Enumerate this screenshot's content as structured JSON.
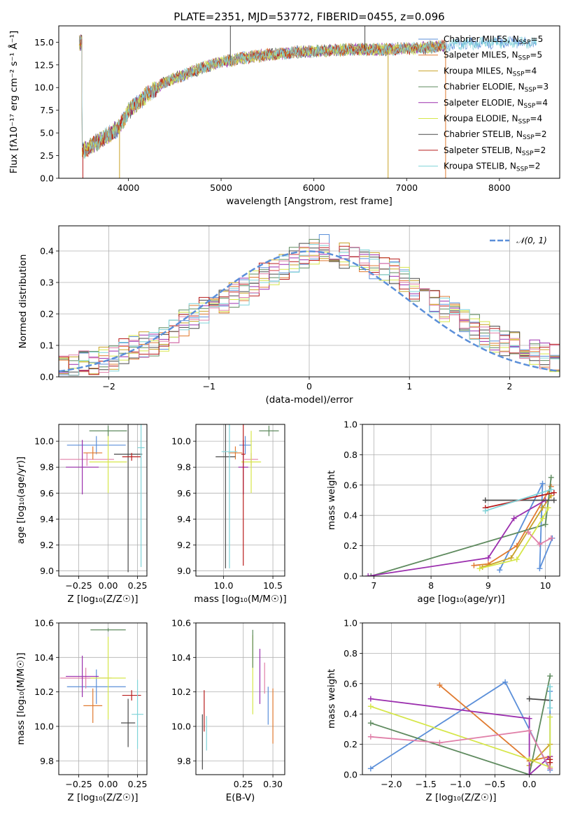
{
  "figure": {
    "colors": {
      "chabrier_miles": "#5b8fd9",
      "salpeter_miles": "#e07a30",
      "kroupa_miles": "#c9a227",
      "chabrier_elodie": "#5e8a5e",
      "salpeter_elodie": "#9b2fae",
      "kroupa_elodie": "#d6e64a",
      "chabrier_stelib": "#4a4a4a",
      "salpeter_stelib": "#b81c1c",
      "kroupa_stelib": "#7fd3d8",
      "pink": "#e07fa8",
      "normal_curve": "#5b8fd9"
    }
  },
  "chart_data": [
    {
      "id": "spectrum",
      "type": "line",
      "title": "PLATE=2351, MJD=53772, FIBERID=0455, z=0.096",
      "xlabel": "wavelength [Angstrom, rest frame]",
      "ylabel": "Flux [fλ10⁻¹⁷ erg cm⁻² s⁻¹ Å⁻¹]",
      "xlim": [
        3250,
        8650
      ],
      "ylim": [
        0,
        16.8
      ],
      "xticks": [
        "4000",
        "5000",
        "6000",
        "7000",
        "8000"
      ],
      "xtick_values": [
        4000,
        5000,
        6000,
        7000,
        8000
      ],
      "yticks": [
        "0.0",
        "2.5",
        "5.0",
        "7.5",
        "10.0",
        "12.5",
        "15.0"
      ],
      "ytick_values": [
        0,
        2.5,
        5,
        7.5,
        10,
        12.5,
        15
      ],
      "continuum": {
        "x": [
          3500,
          3700,
          3900,
          4000,
          4200,
          4400,
          4600,
          4800,
          5000,
          5200,
          5400,
          5600,
          5800,
          6000,
          6200,
          6400,
          6600,
          6800,
          7000,
          7200,
          7400,
          7600,
          7800,
          8000,
          8200,
          8400
        ],
        "y": [
          3.0,
          4.2,
          5.6,
          7.4,
          9.2,
          10.6,
          11.4,
          12.2,
          12.8,
          13.2,
          13.5,
          13.7,
          13.9,
          14.0,
          14.1,
          14.2,
          14.2,
          14.2,
          14.3,
          14.4,
          14.6,
          14.8,
          14.9,
          15.0,
          15.0,
          15.0
        ]
      },
      "spikes": [
        {
          "x": 3510,
          "y": 0,
          "series": "Salpeter STELIB"
        },
        {
          "x": 3905,
          "y": 0,
          "series": "Kroupa MILES"
        },
        {
          "x": 5100,
          "y": 16.8,
          "series": "Chabrier STELIB"
        },
        {
          "x": 6550,
          "y": 16.8,
          "series": "Chabrier STELIB"
        },
        {
          "x": 6800,
          "y": 0,
          "series": "Kroupa MILES"
        },
        {
          "x": 7420,
          "y": 0,
          "series": "Salpeter MILES"
        }
      ],
      "legend": {
        "placement": "upper right",
        "entries": [
          {
            "name": "Chabrier MILES, N",
            "sub": "SSP",
            "value": "=5",
            "color": "#5b8fd9"
          },
          {
            "name": "Salpeter MILES, N",
            "sub": "SSP",
            "value": "=5",
            "color": "#e07a30"
          },
          {
            "name": "Kroupa MILES, N",
            "sub": "SSP",
            "value": "=4",
            "color": "#c9a227"
          },
          {
            "name": "Chabrier ELODIE, N",
            "sub": "SSP",
            "value": "=3",
            "color": "#5e8a5e"
          },
          {
            "name": "Salpeter ELODIE, N",
            "sub": "SSP",
            "value": "=4",
            "color": "#9b2fae"
          },
          {
            "name": "Kroupa ELODIE, N",
            "sub": "SSP",
            "value": "=4",
            "color": "#d6e64a"
          },
          {
            "name": "Chabrier STELIB, N",
            "sub": "SSP",
            "value": "=2",
            "color": "#4a4a4a"
          },
          {
            "name": "Salpeter STELIB, N",
            "sub": "SSP",
            "value": "=2",
            "color": "#b81c1c"
          },
          {
            "name": "Kroupa STELIB, N",
            "sub": "SSP",
            "value": "=2",
            "color": "#7fd3d8"
          }
        ]
      }
    },
    {
      "id": "residuals",
      "type": "line",
      "xlabel": "(data-model)/error",
      "ylabel": "Normed distribution",
      "xlim": [
        -2.5,
        2.5
      ],
      "ylim": [
        0,
        0.48
      ],
      "grid": true,
      "xticks": [
        "−2",
        "−1",
        "0",
        "1",
        "2"
      ],
      "xtick_values": [
        -2,
        -1,
        0,
        1,
        2
      ],
      "yticks": [
        "0.0",
        "0.1",
        "0.2",
        "0.3",
        "0.4"
      ],
      "ytick_values": [
        0,
        0.1,
        0.2,
        0.3,
        0.4
      ],
      "legend": {
        "placement": "upper right",
        "label": "𝒩(0, 1)"
      },
      "normal": {
        "mean": 0,
        "sigma": 1
      },
      "histogram": {
        "bin_edges_start": -2.5,
        "bin_width": 0.1,
        "base_profile": [
          0.03,
          0.03,
          0.04,
          0.05,
          0.05,
          0.06,
          0.08,
          0.09,
          0.1,
          0.11,
          0.12,
          0.15,
          0.17,
          0.19,
          0.21,
          0.22,
          0.24,
          0.26,
          0.27,
          0.3,
          0.32,
          0.33,
          0.35,
          0.37,
          0.39,
          0.4,
          0.41,
          0.4,
          0.39,
          0.38,
          0.37,
          0.35,
          0.34,
          0.33,
          0.31,
          0.28,
          0.27,
          0.25,
          0.22,
          0.2,
          0.18,
          0.16,
          0.14,
          0.12,
          0.11,
          0.1,
          0.09,
          0.08,
          0.07,
          0.06
        ]
      }
    },
    {
      "id": "age_vs_Z",
      "type": "scatter",
      "xlabel": "Z [log₁₀(Z/Z☉)]",
      "ylabel": "age  [log₁₀(age/yr)]",
      "xlim": [
        -0.42,
        0.33
      ],
      "ylim": [
        8.96,
        10.13
      ],
      "grid": true,
      "xticks": [
        "−0.25",
        "0.00",
        "0.25"
      ],
      "xtick_values": [
        -0.25,
        0,
        0.25
      ],
      "yticks": [
        "9.0",
        "9.2",
        "9.4",
        "9.6",
        "9.8",
        "10.0"
      ],
      "ytick_values": [
        9.0,
        9.2,
        9.4,
        9.6,
        9.8,
        10.0
      ],
      "points": [
        {
          "x": -0.1,
          "y": 9.97,
          "xerr": 0.25,
          "yerr": 0.07,
          "color": "#5b8fd9"
        },
        {
          "x": -0.18,
          "y": 9.86,
          "xerr": 0.23,
          "yerr": 0.05,
          "color": "#e07fa8"
        },
        {
          "x": -0.13,
          "y": 9.91,
          "xerr": 0.08,
          "yerr": 0.05,
          "color": "#e07a30"
        },
        {
          "x": -0.22,
          "y": 9.8,
          "xerr": 0.14,
          "yerr": 0.21,
          "color": "#9b2fae"
        },
        {
          "x": 0.0,
          "y": 9.84,
          "xerr": 0.16,
          "yerr": 0.24,
          "color": "#d6e64a"
        },
        {
          "x": 0.0,
          "y": 10.08,
          "xerr": 0.16,
          "yerr": 0.04,
          "color": "#5e8a5e"
        },
        {
          "x": 0.17,
          "y": 9.9,
          "xerr": 0.12,
          "yerr": 0.91,
          "color": "#4a4a4a"
        },
        {
          "x": 0.2,
          "y": 9.88,
          "xerr": 0.08,
          "yerr": 0.03,
          "color": "#b81c1c"
        },
        {
          "x": 0.28,
          "y": 9.95,
          "xerr": 0.03,
          "yerr": 0.92,
          "color": "#7fd3d8"
        }
      ]
    },
    {
      "id": "age_vs_mass",
      "type": "scatter",
      "xlabel": "mass [log₁₀(M/M☉)]",
      "ylabel": "",
      "xlim": [
        9.72,
        10.62
      ],
      "ylim": [
        8.96,
        10.13
      ],
      "grid": true,
      "xticks": [
        "10.0",
        "10.5"
      ],
      "xtick_values": [
        10.0,
        10.5
      ],
      "yticks": [
        "9.0",
        "9.2",
        "9.4",
        "9.6",
        "9.8",
        "10.0"
      ],
      "ytick_values": [
        9.0,
        9.2,
        9.4,
        9.6,
        9.8,
        10.0
      ],
      "points": [
        {
          "x": 10.22,
          "y": 9.97,
          "xerr": 0.06,
          "yerr": 0.07,
          "color": "#5b8fd9"
        },
        {
          "x": 10.28,
          "y": 9.86,
          "xerr": 0.07,
          "yerr": 0.05,
          "color": "#e07fa8"
        },
        {
          "x": 10.12,
          "y": 9.91,
          "xerr": 0.07,
          "yerr": 0.05,
          "color": "#e07a30"
        },
        {
          "x": 10.2,
          "y": 9.8,
          "xerr": 0.05,
          "yerr": 0.21,
          "color": "#9b2fae"
        },
        {
          "x": 10.28,
          "y": 9.84,
          "xerr": 0.1,
          "yerr": 0.24,
          "color": "#d6e64a"
        },
        {
          "x": 10.46,
          "y": 10.08,
          "xerr": 0.1,
          "yerr": 0.04,
          "color": "#5e8a5e"
        },
        {
          "x": 10.02,
          "y": 9.88,
          "xerr": 0.1,
          "yerr": 0.86,
          "color": "#4a4a4a"
        },
        {
          "x": 10.2,
          "y": 9.9,
          "xerr": 0.02,
          "yerr": 0.86,
          "color": "#b81c1c"
        },
        {
          "x": 10.06,
          "y": 9.92,
          "xerr": 0.08,
          "yerr": 0.9,
          "color": "#7fd3d8"
        }
      ]
    },
    {
      "id": "massweight_vs_age",
      "type": "line",
      "xlabel": "age  [log₁₀(age/yr)]",
      "ylabel": "mass weight",
      "xlim": [
        6.8,
        10.25
      ],
      "ylim": [
        0,
        1
      ],
      "grid": true,
      "xticks": [
        "7",
        "8",
        "9",
        "10"
      ],
      "xtick_values": [
        7,
        8,
        9,
        10
      ],
      "yticks": [
        "0.0",
        "0.2",
        "0.4",
        "0.6",
        "0.8",
        "1.0"
      ],
      "ytick_values": [
        0,
        0.2,
        0.4,
        0.6,
        0.8,
        1.0
      ],
      "series": [
        {
          "name": "Chabrier MILES",
          "color": "#5b8fd9",
          "x": [
            9.2,
            9.95,
            9.9,
            10.12
          ],
          "y": [
            0.04,
            0.61,
            0.05,
            0.25
          ]
        },
        {
          "name": "Salpeter MILES",
          "color": "#e07a30",
          "x": [
            8.75,
            9.0,
            9.5,
            10.1
          ],
          "y": [
            0.07,
            0.08,
            0.2,
            0.59
          ]
        },
        {
          "name": "Kroupa MILES",
          "color": "#c9a227",
          "x": [
            8.9,
            9.4,
            9.95,
            10.1
          ],
          "y": [
            0.06,
            0.12,
            0.45,
            0.53
          ]
        },
        {
          "name": "Chabrier ELODIE",
          "color": "#5e8a5e",
          "x": [
            6.95,
            10.0,
            10.1
          ],
          "y": [
            0.0,
            0.34,
            0.65
          ]
        },
        {
          "name": "Salpeter ELODIE",
          "color": "#9b2fae",
          "x": [
            6.9,
            9.0,
            9.45,
            10.0
          ],
          "y": [
            0.0,
            0.12,
            0.38,
            0.5
          ]
        },
        {
          "name": "Kroupa ELODIE",
          "color": "#d6e64a",
          "x": [
            8.85,
            9.5,
            9.95,
            10.05
          ],
          "y": [
            0.05,
            0.11,
            0.38,
            0.45
          ]
        },
        {
          "name": "Chabrier STELIB",
          "color": "#4a4a4a",
          "x": [
            8.95,
            10.15
          ],
          "y": [
            0.5,
            0.5
          ]
        },
        {
          "name": "Salpeter STELIB",
          "color": "#b81c1c",
          "x": [
            8.95,
            10.15
          ],
          "y": [
            0.45,
            0.55
          ]
        },
        {
          "name": "Kroupa STELIB",
          "color": "#7fd3d8",
          "x": [
            8.95,
            10.1
          ],
          "y": [
            0.43,
            0.57
          ]
        },
        {
          "name": "",
          "color": "#e07fa8",
          "x": [
            9.7,
            9.9,
            10.1
          ],
          "y": [
            0.29,
            0.21,
            0.25
          ]
        }
      ]
    },
    {
      "id": "mass_vs_Z",
      "type": "scatter",
      "xlabel": "Z [log₁₀(Z/Z☉)]",
      "ylabel": "mass [log₁₀(M/M☉)]",
      "xlim": [
        -0.42,
        0.33
      ],
      "ylim": [
        9.72,
        10.6
      ],
      "grid": true,
      "xticks": [
        "−0.25",
        "0.00",
        "0.25"
      ],
      "xtick_values": [
        -0.25,
        0,
        0.25
      ],
      "yticks": [
        "9.8",
        "10.0",
        "10.2",
        "10.4",
        "10.6"
      ],
      "ytick_values": [
        9.8,
        10.0,
        10.2,
        10.4,
        10.6
      ],
      "points": [
        {
          "x": -0.1,
          "y": 10.23,
          "xerr": 0.25,
          "yerr": 0.1,
          "color": "#5b8fd9"
        },
        {
          "x": -0.19,
          "y": 10.28,
          "xerr": 0.22,
          "yerr": 0.06,
          "color": "#e07fa8"
        },
        {
          "x": -0.13,
          "y": 10.12,
          "xerr": 0.08,
          "yerr": 0.1,
          "color": "#e07a30"
        },
        {
          "x": -0.22,
          "y": 10.29,
          "xerr": 0.14,
          "yerr": 0.12,
          "color": "#9b2fae"
        },
        {
          "x": 0.0,
          "y": 10.28,
          "xerr": 0.15,
          "yerr": 0.24,
          "color": "#d6e64a"
        },
        {
          "x": 0.0,
          "y": 10.56,
          "xerr": 0.15,
          "yerr": 0.01,
          "color": "#5e8a5e"
        },
        {
          "x": 0.17,
          "y": 10.02,
          "xerr": 0.06,
          "yerr": 0.14,
          "color": "#4a4a4a"
        },
        {
          "x": 0.2,
          "y": 10.18,
          "xerr": 0.08,
          "yerr": 0.03,
          "color": "#b81c1c"
        },
        {
          "x": 0.25,
          "y": 10.07,
          "xerr": 0.05,
          "yerr": 0.2,
          "color": "#7fd3d8"
        }
      ]
    },
    {
      "id": "mass_vs_ebv",
      "type": "scatter",
      "xlabel": "E(B-V)",
      "ylabel": "",
      "xlim": [
        0.17,
        0.32
      ],
      "ylim": [
        9.72,
        10.6
      ],
      "grid": true,
      "xticks": [
        "0.25",
        "0.30"
      ],
      "xtick_values": [
        0.25,
        0.3
      ],
      "yticks": [
        "9.8",
        "10.0",
        "10.2",
        "10.4",
        "10.6"
      ],
      "ytick_values": [
        9.8,
        10.0,
        10.2,
        10.4,
        10.6
      ],
      "points": [
        {
          "x": 0.3,
          "y": 10.06,
          "yerr": 0.16,
          "color": "#e07a30"
        },
        {
          "x": 0.292,
          "y": 10.12,
          "yerr": 0.11,
          "color": "#5b8fd9"
        },
        {
          "x": 0.286,
          "y": 10.28,
          "yerr": 0.09,
          "color": "#e07fa8"
        },
        {
          "x": 0.278,
          "y": 10.29,
          "yerr": 0.16,
          "color": "#9b2fae"
        },
        {
          "x": 0.266,
          "y": 10.3,
          "yerr": 0.23,
          "color": "#d6e64a"
        },
        {
          "x": 0.266,
          "y": 10.45,
          "yerr": 0.11,
          "color": "#5e8a5e"
        },
        {
          "x": 0.181,
          "y": 9.91,
          "yerr": 0.16,
          "color": "#4a4a4a"
        },
        {
          "x": 0.184,
          "y": 10.09,
          "yerr": 0.12,
          "color": "#b81c1c"
        },
        {
          "x": 0.188,
          "y": 9.96,
          "yerr": 0.1,
          "color": "#7fd3d8"
        }
      ]
    },
    {
      "id": "massweight_vs_Z",
      "type": "line",
      "xlabel": "Z [log₁₀(Z/Z☉)]",
      "ylabel": "mass weight",
      "xlim": [
        -2.42,
        0.44
      ],
      "ylim": [
        0,
        1
      ],
      "grid": true,
      "xticks": [
        "−2.0",
        "−1.5",
        "−1.0",
        "−0.5",
        "0.0"
      ],
      "xtick_values": [
        -2.0,
        -1.5,
        -1.0,
        -0.5,
        0.0
      ],
      "yticks": [
        "0.0",
        "0.2",
        "0.4",
        "0.6",
        "0.8",
        "1.0"
      ],
      "ytick_values": [
        0,
        0.2,
        0.4,
        0.6,
        0.8,
        1.0
      ],
      "series": [
        {
          "name": "Chabrier MILES",
          "color": "#5b8fd9",
          "x": [
            -2.3,
            -0.35,
            0.3,
            0.3
          ],
          "y": [
            0.04,
            0.61,
            0.03,
            0.55
          ]
        },
        {
          "name": "Salpeter MILES",
          "color": "#e07a30",
          "x": [
            -1.3,
            0.0,
            0.3
          ],
          "y": [
            0.59,
            0.09,
            0.12
          ]
        },
        {
          "name": "Kroupa MILES",
          "color": "#c9a227",
          "x": [
            0.0,
            0.3
          ],
          "y": [
            0.06,
            0.2
          ]
        },
        {
          "name": "Chabrier ELODIE",
          "color": "#5e8a5e",
          "x": [
            -2.3,
            0.0,
            0.3
          ],
          "y": [
            0.34,
            0.0,
            0.65
          ]
        },
        {
          "name": "Salpeter ELODIE",
          "color": "#9b2fae",
          "x": [
            -2.3,
            0.0,
            0.0,
            0.3
          ],
          "y": [
            0.5,
            0.37,
            0.0,
            0.12
          ]
        },
        {
          "name": "Kroupa ELODIE",
          "color": "#d6e64a",
          "x": [
            -2.3,
            0.0,
            0.3,
            0.3
          ],
          "y": [
            0.45,
            0.1,
            0.05,
            0.38
          ]
        },
        {
          "name": "Chabrier STELIB",
          "color": "#4a4a4a",
          "x": [
            0.0,
            0.3
          ],
          "y": [
            0.5,
            0.49
          ]
        },
        {
          "name": "Salpeter STELIB",
          "color": "#b81c1c",
          "x": [
            0.3,
            0.3
          ],
          "y": [
            0.08,
            0.1
          ]
        },
        {
          "name": "Kroupa STELIB",
          "color": "#7fd3d8",
          "x": [
            0.3,
            0.3
          ],
          "y": [
            0.44,
            0.58
          ]
        },
        {
          "name": "",
          "color": "#e07fa8",
          "x": [
            -2.3,
            -1.3,
            0.0,
            0.3
          ],
          "y": [
            0.25,
            0.21,
            0.29,
            0.04
          ]
        }
      ]
    }
  ]
}
